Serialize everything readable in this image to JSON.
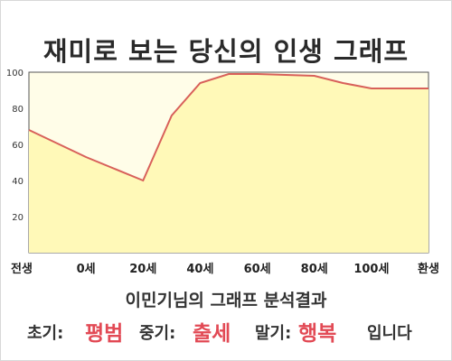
{
  "page": {
    "title": "재미로 보는 당신의 인생 그래프",
    "subtitle": "이민기님의 그래프 분석결과"
  },
  "result": {
    "early_label": "초기:",
    "early_value": "평범",
    "middle_label": "중기:",
    "middle_value": "출세",
    "late_label": "말기:",
    "late_value": "행복",
    "suffix": "입니다"
  },
  "colors": {
    "plot_fill": "#fffde8",
    "area_fill": "#fff9b8",
    "line": "#d8605a",
    "accent_text": "#e24a55"
  },
  "chart_data": {
    "type": "area",
    "x_categories": [
      "전생",
      "0세",
      "20세",
      "40세",
      "60세",
      "80세",
      "100세",
      "환생"
    ],
    "x": [
      0,
      1,
      2,
      2.5,
      3,
      3.5,
      4,
      5,
      5.5,
      6,
      7
    ],
    "y": [
      68,
      53,
      40,
      76,
      94,
      99,
      99,
      98,
      94,
      91,
      91
    ],
    "ylim": [
      0,
      100
    ],
    "yticks": [
      20,
      40,
      60,
      80,
      100
    ],
    "grid": false,
    "legend": "none"
  }
}
